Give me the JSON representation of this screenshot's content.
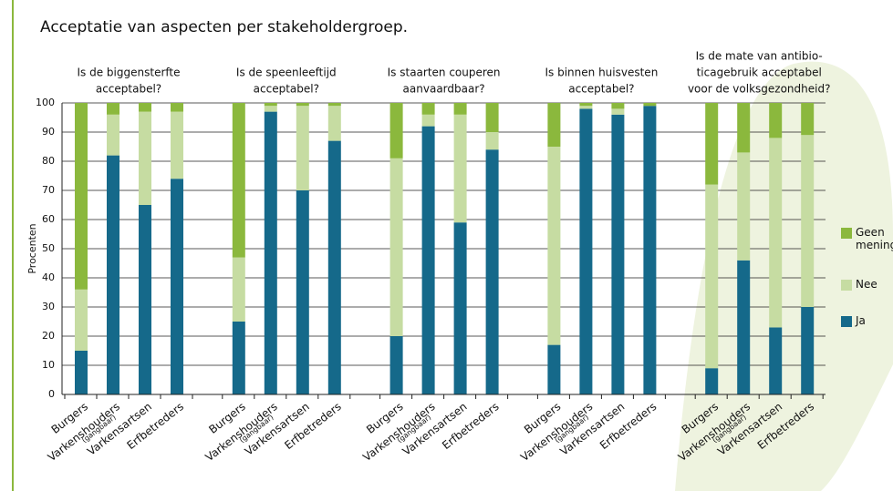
{
  "chart_data": {
    "type": "stacked-bar",
    "title": "Acceptatie van aspecten per stakeholdergroep.",
    "y_label": "Procenten",
    "group_titles": [
      [
        "Is de biggensterfte",
        "acceptabel?"
      ],
      [
        "Is de speenleeftijd",
        "acceptabel?"
      ],
      [
        "Is staarten couperen",
        "aanvaardbaar?"
      ],
      [
        "Is binnen huisvesten",
        "acceptabel?"
      ],
      [
        "Is de mate van antibio-",
        "ticagebruik acceptabel",
        "voor de volksgezondheid?"
      ]
    ],
    "categories": [
      "Burgers",
      "Varkenshouders",
      "Varkensartsen",
      "Erfbetreders",
      "Burgers",
      "Varkenshouders",
      "Varkensartsen",
      "Erfbetreders",
      "Burgers",
      "Varkenshouders",
      "Varkensartsen",
      "Erfbetreders",
      "Burgers",
      "Varkenshouders",
      "Varkensartsen",
      "Erfbetreders",
      "Burgers",
      "Varkenshouders",
      "Varkensartsen",
      "Erfbetreders"
    ],
    "category_sublabels": [
      null,
      "(gangbaar)",
      null,
      null,
      null,
      "(gangbaar)",
      null,
      null,
      null,
      "(gangbaar)",
      null,
      null,
      null,
      "(gangbaar)",
      null,
      null,
      null,
      "(gangbaar)",
      null,
      null
    ],
    "series": [
      {
        "name": "Ja",
        "color": "#15698a",
        "values": [
          15,
          82,
          65,
          74,
          25,
          97,
          70,
          87,
          20,
          92,
          59,
          84,
          17,
          98,
          96,
          99,
          9,
          46,
          23,
          30
        ]
      },
      {
        "name": "Nee",
        "color": "#c6dca2",
        "values": [
          21,
          14,
          32,
          23,
          22,
          2,
          29,
          12,
          61,
          4,
          37,
          6,
          68,
          1,
          2,
          0,
          63,
          37,
          65,
          59
        ]
      },
      {
        "name": "Geen mening",
        "color": "#8bb83d",
        "values": [
          64,
          4,
          3,
          3,
          53,
          1,
          1,
          1,
          19,
          4,
          4,
          10,
          15,
          1,
          2,
          1,
          28,
          17,
          12,
          11
        ]
      }
    ],
    "ylim": [
      0,
      100
    ],
    "yticks": [
      0,
      10,
      20,
      30,
      40,
      50,
      60,
      70,
      80,
      90,
      100
    ],
    "grid": true
  }
}
